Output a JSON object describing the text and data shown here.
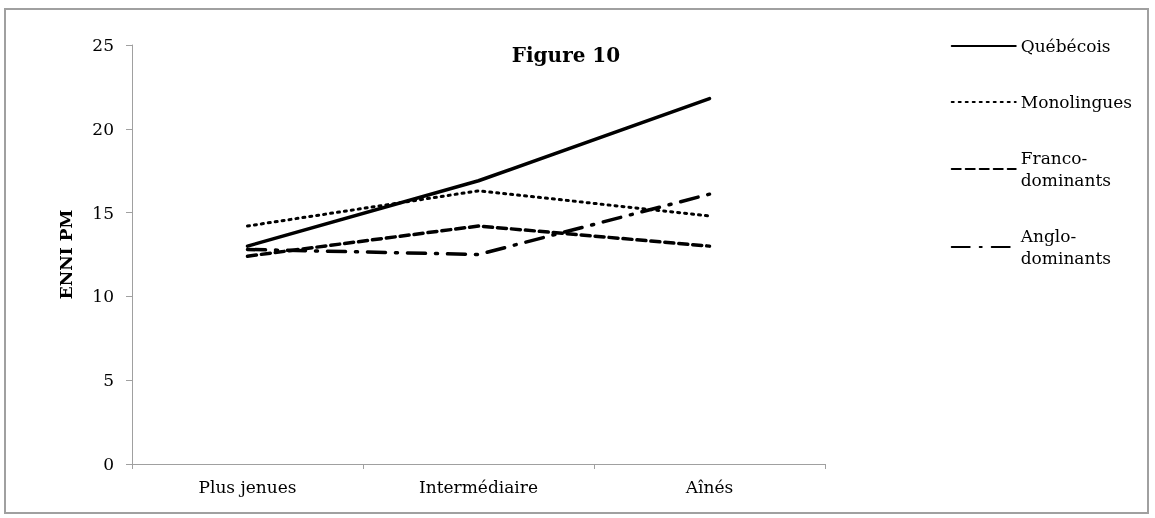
{
  "chart_data": {
    "type": "line",
    "title": "Figure 10",
    "ylabel": "ENNI PM",
    "categories": [
      "Plus jenues",
      "Intermédiaire",
      "Aînés"
    ],
    "ylim": [
      0,
      25
    ],
    "yticks": [
      0,
      5,
      10,
      15,
      20,
      25
    ],
    "grid": false,
    "legend": "right",
    "marker": "none",
    "series": [
      {
        "name": "Québécois",
        "color": "#000000",
        "line_style": "solid",
        "values": [
          13.0,
          16.9,
          21.8
        ]
      },
      {
        "name": "Monolingues",
        "color": "#000000",
        "line_style": "dotted",
        "values": [
          14.2,
          16.3,
          14.8
        ]
      },
      {
        "name": "Franco-dominants",
        "color": "#000000",
        "line_style": "dashed",
        "values": [
          12.4,
          14.2,
          13.0
        ]
      },
      {
        "name": "Anglo-dominants",
        "color": "#000000",
        "line_style": "dashdot",
        "values": [
          12.8,
          12.5,
          16.1
        ]
      }
    ]
  }
}
